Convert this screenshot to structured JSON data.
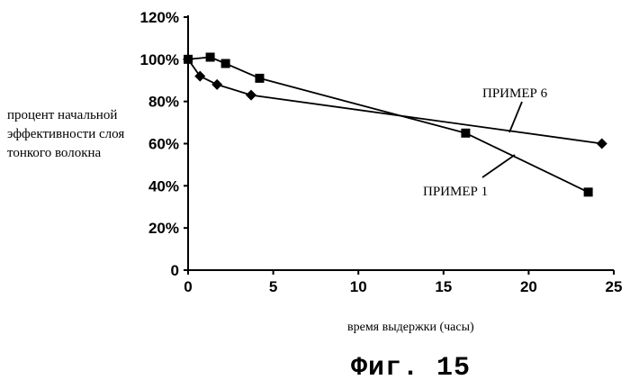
{
  "chart_data": {
    "type": "line",
    "xlabel": "время выдержки (часы)",
    "ylabel_lines": [
      "процент начальной",
      "эффективности слоя",
      "тонкого волокна"
    ],
    "x_ticks": [
      "0",
      "5",
      "10",
      "15",
      "20",
      "25"
    ],
    "y_ticks": [
      "0",
      "20%",
      "40%",
      "60%",
      "80%",
      "100%",
      "120%"
    ],
    "xlim": [
      0,
      25
    ],
    "ylim": [
      0,
      120
    ],
    "grid": false,
    "series": [
      {
        "name": "ПРИМЕР 1",
        "marker": "square",
        "points": [
          [
            0,
            100
          ],
          [
            1.3,
            101
          ],
          [
            2.2,
            98
          ],
          [
            4.2,
            91
          ],
          [
            16.3,
            65
          ],
          [
            23.5,
            37
          ]
        ]
      },
      {
        "name": "ПРИМЕР 6",
        "marker": "diamond",
        "points": [
          [
            0,
            100
          ],
          [
            0.7,
            92
          ],
          [
            1.7,
            88
          ],
          [
            3.7,
            83
          ],
          [
            24.3,
            60
          ]
        ]
      }
    ]
  },
  "caption": "Фиг. 15"
}
